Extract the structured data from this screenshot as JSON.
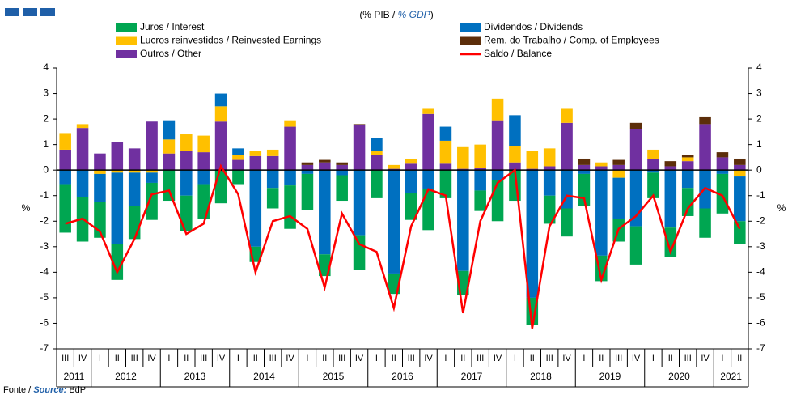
{
  "chart_data": {
    "type": "bar",
    "subtitle": {
      "pt": "(% PIB /",
      "en": "% GDP",
      "end": ")"
    },
    "y_label": "%",
    "y2_label": "%",
    "source": {
      "pt": "Fonte /",
      "en": "Source:",
      "name": "BdP"
    },
    "categories": [
      "III",
      "IV",
      "I",
      "II",
      "III",
      "IV",
      "I",
      "II",
      "III",
      "IV",
      "I",
      "II",
      "III",
      "IV",
      "I",
      "II",
      "III",
      "IV",
      "I",
      "II",
      "III",
      "IV",
      "I",
      "II",
      "III",
      "IV",
      "I",
      "II",
      "III",
      "IV",
      "I",
      "II",
      "III",
      "IV",
      "I",
      "II",
      "III",
      "IV",
      "I",
      "II"
    ],
    "years": [
      "2011",
      "2012",
      "2013",
      "2014",
      "2015",
      "2016",
      "2017",
      "2018",
      "2019",
      "2020",
      "2021"
    ],
    "ylim": [
      -7,
      4
    ],
    "yticks": [
      -7,
      -6,
      -5,
      -4,
      -3,
      -2,
      -1,
      0,
      1,
      2,
      3,
      4
    ],
    "y2lim": [
      -7,
      4
    ],
    "y2ticks": [
      -7,
      -6,
      -5,
      -4,
      -3,
      -2,
      -1,
      0,
      1,
      2,
      3,
      4
    ],
    "series": [
      {
        "name": "Juros / Interest",
        "color": "#00a651",
        "values": [
          -1.9,
          -1.75,
          -1.4,
          -1.4,
          -1.3,
          -1.45,
          -1.2,
          -1.4,
          -1.35,
          -1.3,
          -0.55,
          -0.6,
          -0.8,
          -1.7,
          -1.4,
          -0.85,
          -1.0,
          -1.35,
          -1.1,
          -0.8,
          -1.05,
          -1.6,
          -1.1,
          -0.95,
          -0.8,
          -1.6,
          -1.2,
          -1.05,
          -1.1,
          -1.1,
          -1.25,
          -1.0,
          -0.9,
          -1.5,
          -1.0,
          -1.15,
          -1.1,
          -1.15,
          -1.55,
          -0.9
        ]
      },
      {
        "name": "Dividendos / Dividends",
        "color": "#0070c0",
        "values": [
          -0.55,
          -1.05,
          -1.1,
          -2.8,
          -1.3,
          -0.4,
          0.75,
          -1.0,
          -0.55,
          0.5,
          0.25,
          -3.0,
          -0.7,
          -0.6,
          -0.15,
          -3.3,
          -0.2,
          -2.55,
          0.5,
          -4.05,
          -0.9,
          -0.75,
          0.55,
          -3.95,
          -0.8,
          -0.4,
          1.2,
          -5.0,
          -1.0,
          -1.5,
          -0.15,
          -3.35,
          -1.6,
          -2.2,
          -0.1,
          -2.25,
          -0.7,
          -1.5,
          -0.15,
          -1.75
        ]
      },
      {
        "name": "Lucros reinvestidos / Reinvested Earnings",
        "color": "#ffc000",
        "values": [
          0.65,
          0.15,
          -0.15,
          -0.1,
          -0.1,
          -0.1,
          0.55,
          0.65,
          0.65,
          0.6,
          0.2,
          0.2,
          0.25,
          0.25,
          0,
          0,
          0,
          0,
          0.15,
          0.15,
          0.2,
          0.2,
          0.9,
          0.85,
          0.9,
          0.85,
          0.65,
          0.7,
          0.7,
          0.55,
          0,
          0.15,
          -0.3,
          0,
          0.35,
          0,
          0.15,
          0,
          0,
          -0.25
        ]
      },
      {
        "name": "Rem. do Trabalho / Comp. of Employees",
        "color": "#5c2e0a",
        "values": [
          0,
          0,
          0,
          0,
          0,
          0,
          0,
          0,
          0,
          0,
          0,
          0,
          0,
          0,
          0.1,
          0.1,
          0.1,
          0.05,
          0,
          0,
          0,
          0,
          0,
          0,
          0,
          0,
          0,
          0,
          0,
          0,
          0.25,
          0,
          0.2,
          0.25,
          0,
          0.2,
          0.1,
          0.3,
          0.2,
          0.25
        ]
      },
      {
        "name": "Outros / Other",
        "color": "#7030a0",
        "values": [
          0.8,
          1.65,
          0.65,
          1.1,
          0.85,
          1.9,
          0.65,
          0.75,
          0.7,
          1.9,
          0.4,
          0.55,
          0.55,
          1.7,
          0.2,
          0.3,
          0.2,
          1.75,
          0.6,
          0.05,
          0.25,
          2.2,
          0.25,
          0.05,
          0.1,
          1.95,
          0.3,
          0.05,
          0.15,
          1.85,
          0.2,
          0.15,
          0.2,
          1.6,
          0.45,
          0.15,
          0.35,
          1.8,
          0.5,
          0.2
        ]
      },
      {
        "name": "Saldo / Balance",
        "color": "#ff0000",
        "type": "line",
        "values": [
          -2.1,
          -1.9,
          -2.4,
          -4.0,
          -2.7,
          -0.95,
          -0.8,
          -2.5,
          -2.1,
          0.15,
          -0.95,
          -4.0,
          -2.0,
          -1.8,
          -2.3,
          -4.6,
          -1.7,
          -2.9,
          -3.2,
          -5.4,
          -2.2,
          -0.75,
          -1.0,
          -5.6,
          -2.0,
          -0.5,
          0.0,
          -6.2,
          -2.2,
          -1.0,
          -1.1,
          -4.3,
          -2.3,
          -1.8,
          -1.0,
          -3.2,
          -1.5,
          -0.7,
          -1.0,
          -2.3
        ]
      }
    ]
  }
}
